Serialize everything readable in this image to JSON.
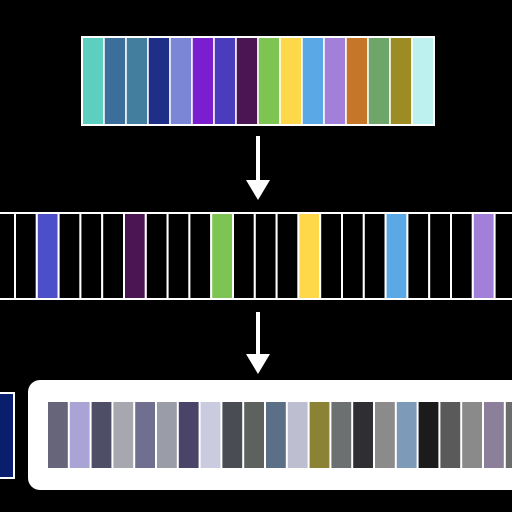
{
  "diagram": {
    "background": "#000000",
    "stroke_color": "#ffffff",
    "arrow_color": "#ffffff",
    "top_palette": {
      "colors": [
        "#5dcfc0",
        "#3b6e9a",
        "#437e9e",
        "#1f2e87",
        "#7b87d6",
        "#7a1ed0",
        "#4b3bbd",
        "#4b1553",
        "#7ec453",
        "#ffd84a",
        "#5aa9e6",
        "#a27fd9",
        "#c57628",
        "#6ea66a",
        "#9d8c24",
        "#bdf1f0"
      ]
    },
    "middle_row": {
      "slot_count": 22,
      "filled_slots": [
        {
          "index": 1,
          "color": "#4d4fc9"
        },
        {
          "index": 5,
          "color": "#4b1553"
        },
        {
          "index": 9,
          "color": "#7ec453"
        },
        {
          "index": 13,
          "color": "#ffd84a"
        },
        {
          "index": 17,
          "color": "#5aa9e6"
        },
        {
          "index": 21,
          "color": "#a27fd9"
        }
      ]
    },
    "bottom_row": {
      "left_swatch_color": "#0a1e6e",
      "colors": [
        "#67657a",
        "#aaa4d6",
        "#4e4e66",
        "#a7a7af",
        "#706f8f",
        "#9a9ca8",
        "#4a4568",
        "#cbcbdf",
        "#4a4c54",
        "#5e625f",
        "#5b7087",
        "#bdbfd0",
        "#8c8236",
        "#6d7070",
        "#2f2f33",
        "#8b8b8b",
        "#7e9ab9",
        "#1b1b1b",
        "#5a5a5a",
        "#8a8a8a",
        "#8b7f99",
        "#6c6c6c"
      ]
    }
  }
}
